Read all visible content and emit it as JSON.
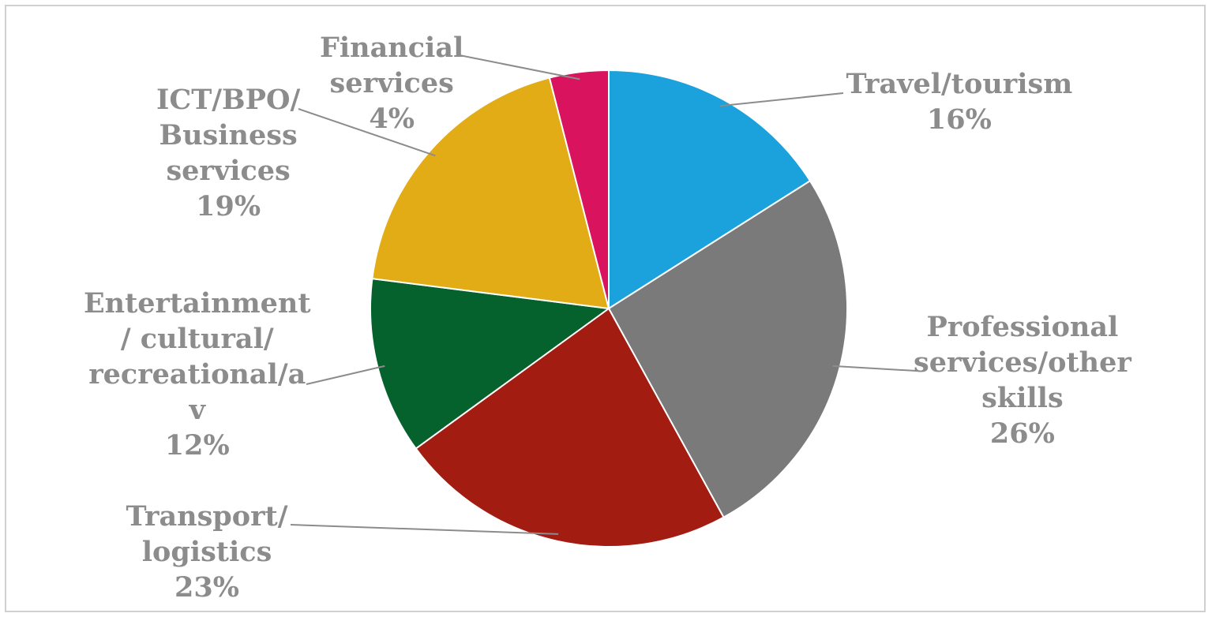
{
  "chart_data": {
    "type": "pie",
    "title": "",
    "start_angle_deg": 0,
    "direction": "clockwise",
    "slices": [
      {
        "label_lines": [
          "Travel/tourism"
        ],
        "percent_label": "16%",
        "value": 16,
        "color": "#1ba1dc"
      },
      {
        "label_lines": [
          "Professional",
          "services/other",
          "skills"
        ],
        "percent_label": "26%",
        "value": 26,
        "color": "#7a7a7a"
      },
      {
        "label_lines": [
          "Transport/",
          "logistics"
        ],
        "percent_label": "23%",
        "value": 23,
        "color": "#a31c12"
      },
      {
        "label_lines": [
          "Entertainment",
          "/ cultural/",
          "recreational/a",
          "v"
        ],
        "percent_label": "12%",
        "value": 12,
        "color": "#06622c"
      },
      {
        "label_lines": [
          "ICT/BPO/",
          "Business",
          "services"
        ],
        "percent_label": "19%",
        "value": 19,
        "color": "#e2ac17"
      },
      {
        "label_lines": [
          "Financial",
          "services"
        ],
        "percent_label": "4%",
        "value": 4,
        "color": "#d9135d"
      }
    ]
  }
}
